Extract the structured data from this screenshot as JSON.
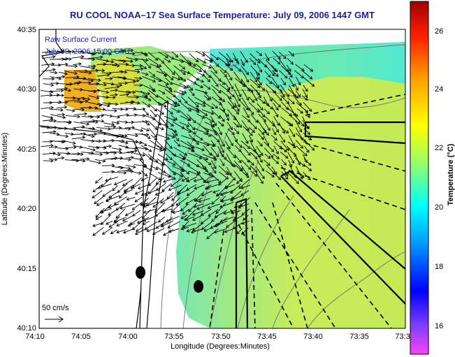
{
  "title": "RU COOL  NOAA–17  Sea Surface Temperature:  July 09, 2006 1447 GMT",
  "legend": {
    "line1": "Raw Surface Current",
    "line2": "July 09, 2006 15:00 GMT"
  },
  "scale_label": "50 cm/s",
  "x_axis": {
    "label": "Longitude (Degrees:Minutes)",
    "ticks": [
      "74:10",
      "74:05",
      "74:00",
      "73:55",
      "73:50",
      "73:45",
      "73:40",
      "73:35",
      "73:3"
    ]
  },
  "y_axis": {
    "label": "Latitude (Degrees:Minutes)",
    "ticks": [
      "40:35",
      "40:30",
      "40:25",
      "40:20",
      "40:15",
      "40:10"
    ]
  },
  "colorbar": {
    "label": "Temperature (°C)",
    "ticks": [
      "26",
      "24",
      "22",
      "20",
      "18",
      "16"
    ],
    "range": [
      15,
      27.5
    ]
  },
  "colors": {
    "title": "#1a22a8",
    "sst_main": "#c8e84a",
    "sst_warm": "#f0b020",
    "sst_cool": "#40e8d8",
    "land": "#ffffff"
  }
}
